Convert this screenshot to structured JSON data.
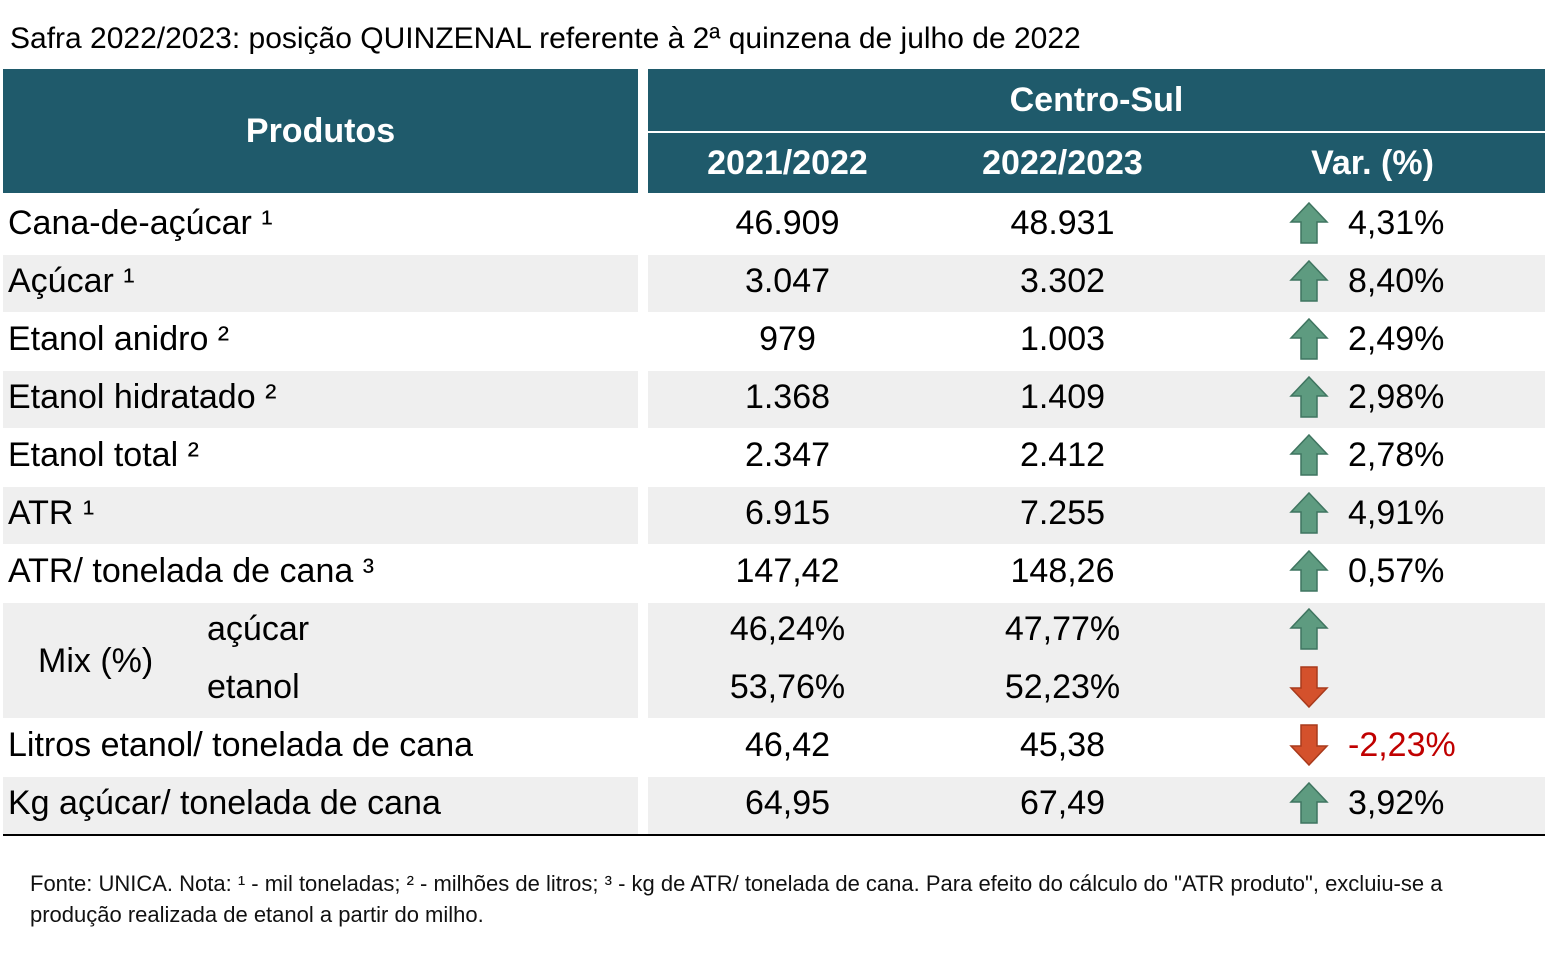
{
  "title": "Safra 2022/2023: posição QUINZENAL referente à 2ª quinzena de julho de 2022",
  "header": {
    "products": "Produtos",
    "region": "Centro-Sul",
    "columns": [
      "2021/2022",
      "2022/2023",
      "Var. (%)"
    ]
  },
  "rows": [
    {
      "label": "Cana-de-açúcar ¹",
      "values": [
        "46.909",
        "48.931",
        "4,31%"
      ],
      "trend": "up"
    },
    {
      "label": "Açúcar ¹",
      "values": [
        "3.047",
        "3.302",
        "8,40%"
      ],
      "trend": "up"
    },
    {
      "label": "Etanol anidro ²",
      "values": [
        "979",
        "1.003",
        "2,49%"
      ],
      "trend": "up"
    },
    {
      "label": "Etanol hidratado ²",
      "values": [
        "1.368",
        "1.409",
        "2,98%"
      ],
      "trend": "up"
    },
    {
      "label": "Etanol total ²",
      "values": [
        "2.347",
        "2.412",
        "2,78%"
      ],
      "trend": "up"
    },
    {
      "label": "ATR ¹",
      "values": [
        "6.915",
        "7.255",
        "4,91%"
      ],
      "trend": "up"
    },
    {
      "label": "ATR/ tonelada de cana ³",
      "values": [
        "147,42",
        "148,26",
        "0,57%"
      ],
      "trend": "up"
    },
    {
      "label": "Mix (%)",
      "subrows": [
        {
          "label": "açúcar",
          "values": [
            "46,24%",
            "47,77%"
          ],
          "trend": "up"
        },
        {
          "label": "etanol",
          "values": [
            "53,76%",
            "52,23%"
          ],
          "trend": "down"
        }
      ]
    },
    {
      "label": "Litros etanol/ tonelada de cana",
      "values": [
        "46,42",
        "45,38",
        "-2,23%"
      ],
      "trend": "down",
      "var_color": "#c00000"
    },
    {
      "label": "Kg açúcar/ tonelada de cana",
      "values": [
        "64,95",
        "67,49",
        "3,92%"
      ],
      "trend": "up"
    }
  ],
  "footnote": "Fonte: UNICA. Nota: ¹ - mil toneladas; ² - milhões de litros; ³ - kg de ATR/ tonelada de cana. Para efeito do cálculo do \"ATR produto\", excluiu-se a produção realizada de etanol a partir do milho."
}
